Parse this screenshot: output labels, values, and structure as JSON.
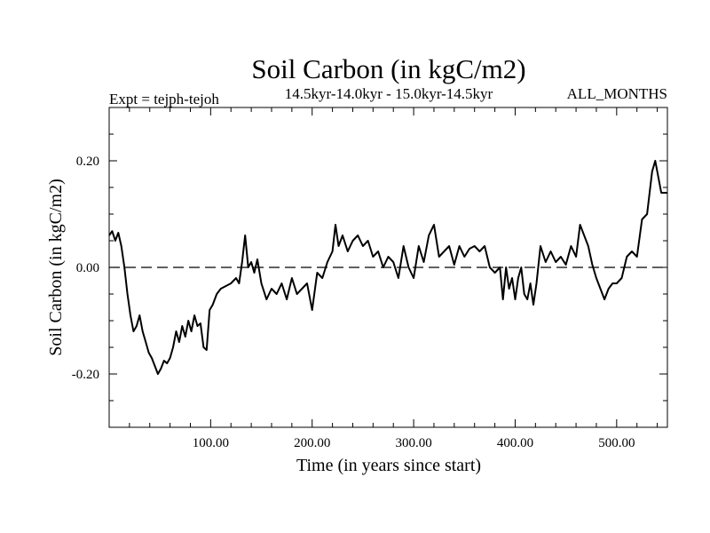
{
  "chart_data": {
    "type": "line",
    "title": "Soil Carbon (in kgC/m2)",
    "subtitle": "14.5kyr-14.0kyr - 15.0kyr-14.5kyr",
    "left_header": "Expt = tejph-tejoh",
    "right_header": "ALL_MONTHS",
    "xlabel": "Time (in years since start)",
    "ylabel": "Soil Carbon (in kgC/m2)",
    "xlim": [
      0,
      550
    ],
    "ylim": [
      -0.3,
      0.3
    ],
    "xticks": [
      100,
      200,
      300,
      400,
      500
    ],
    "xtick_labels": [
      "100.00",
      "200.00",
      "300.00",
      "400.00",
      "500.00"
    ],
    "yticks": [
      -0.2,
      0.0,
      0.2
    ],
    "ytick_labels": [
      "-0.20",
      "0.00",
      "0.20"
    ],
    "zero_line": true,
    "grid": false,
    "series": [
      {
        "x": [
          0,
          3,
          6,
          9,
          12,
          15,
          18,
          21,
          24,
          27,
          30,
          33,
          36,
          39,
          42,
          45,
          48,
          51,
          54,
          57,
          60,
          63,
          66,
          69,
          72,
          75,
          78,
          81,
          84,
          87,
          90,
          93,
          96,
          99,
          102,
          106,
          110,
          115,
          120,
          125,
          128,
          131,
          134,
          137,
          140,
          143,
          146,
          150,
          155,
          160,
          165,
          170,
          175,
          180,
          185,
          190,
          195,
          200,
          205,
          210,
          215,
          220,
          223,
          226,
          230,
          235,
          240,
          245,
          250,
          255,
          260,
          265,
          270,
          275,
          280,
          285,
          290,
          295,
          300,
          305,
          310,
          315,
          320,
          325,
          330,
          335,
          340,
          345,
          350,
          355,
          360,
          365,
          370,
          375,
          380,
          385,
          388,
          391,
          394,
          397,
          400,
          403,
          406,
          409,
          412,
          415,
          418,
          421,
          425,
          430,
          435,
          440,
          445,
          450,
          455,
          460,
          464,
          468,
          472,
          476,
          480,
          484,
          488,
          492,
          496,
          500,
          505,
          510,
          515,
          520,
          525,
          530,
          535,
          538,
          541,
          544,
          547,
          550
        ],
        "values": [
          0.06,
          0.068,
          0.05,
          0.065,
          0.04,
          0.0,
          -0.05,
          -0.09,
          -0.12,
          -0.11,
          -0.09,
          -0.12,
          -0.14,
          -0.16,
          -0.17,
          -0.185,
          -0.2,
          -0.19,
          -0.175,
          -0.18,
          -0.17,
          -0.15,
          -0.12,
          -0.14,
          -0.11,
          -0.13,
          -0.1,
          -0.12,
          -0.09,
          -0.11,
          -0.105,
          -0.15,
          -0.155,
          -0.08,
          -0.07,
          -0.05,
          -0.04,
          -0.035,
          -0.03,
          -0.02,
          -0.03,
          0.01,
          0.06,
          0.0,
          0.01,
          -0.01,
          0.015,
          -0.03,
          -0.06,
          -0.04,
          -0.05,
          -0.03,
          -0.06,
          -0.02,
          -0.05,
          -0.04,
          -0.03,
          -0.08,
          -0.01,
          -0.02,
          0.01,
          0.03,
          0.08,
          0.04,
          0.06,
          0.03,
          0.05,
          0.06,
          0.04,
          0.05,
          0.02,
          0.03,
          0.0,
          0.02,
          0.01,
          -0.02,
          0.04,
          0.0,
          -0.02,
          0.04,
          0.01,
          0.06,
          0.08,
          0.02,
          0.03,
          0.04,
          0.005,
          0.04,
          0.02,
          0.035,
          0.04,
          0.03,
          0.04,
          0.0,
          -0.01,
          0.0,
          -0.06,
          0.0,
          -0.04,
          -0.02,
          -0.06,
          -0.02,
          0.0,
          -0.05,
          -0.06,
          -0.03,
          -0.07,
          -0.03,
          0.04,
          0.01,
          0.03,
          0.01,
          0.02,
          0.005,
          0.04,
          0.02,
          0.08,
          0.06,
          0.04,
          0.005,
          -0.02,
          -0.04,
          -0.06,
          -0.04,
          -0.03,
          -0.03,
          -0.02,
          0.02,
          0.03,
          0.02,
          0.09,
          0.1,
          0.18,
          0.2,
          0.17,
          0.14,
          0.14,
          0.14
        ]
      }
    ]
  }
}
